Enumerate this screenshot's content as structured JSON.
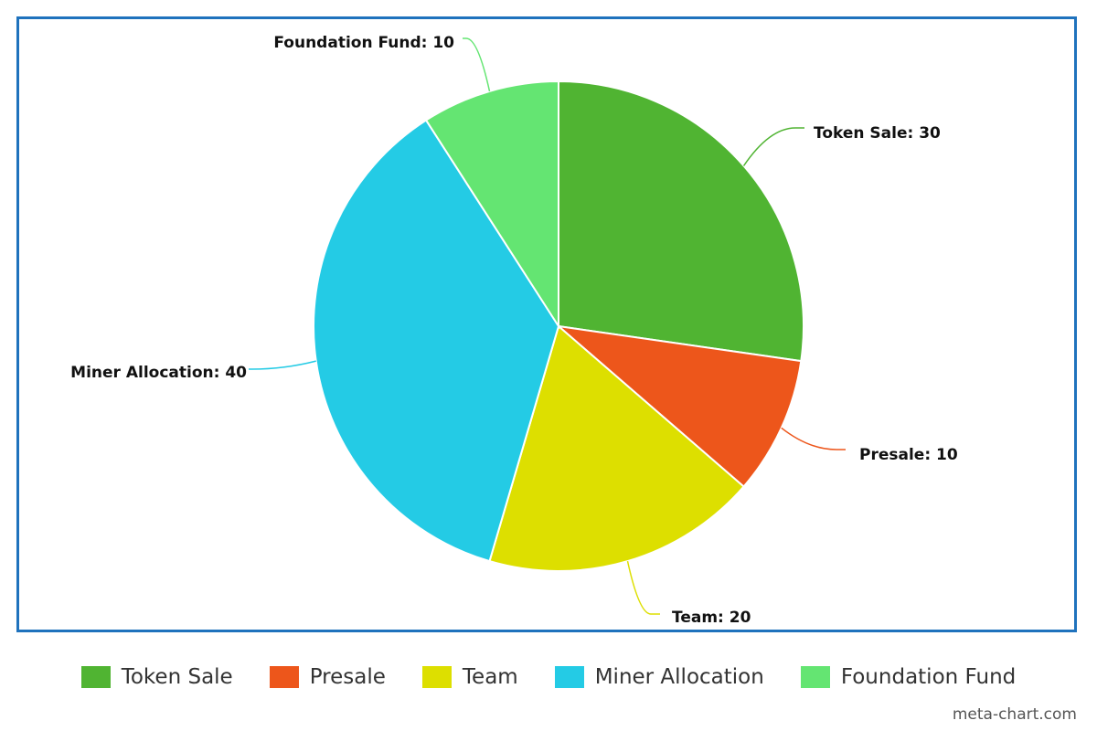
{
  "chart_data": {
    "type": "pie",
    "title": "",
    "label_separator": ": ",
    "slices": [
      {
        "label": "Token Sale",
        "value": 30,
        "color": "#50b432"
      },
      {
        "label": "Presale",
        "value": 10,
        "color": "#ed561b"
      },
      {
        "label": "Team",
        "value": 20,
        "color": "#dddf00"
      },
      {
        "label": "Miner Allocation",
        "value": 40,
        "color": "#24cbe5"
      },
      {
        "label": "Foundation Fund",
        "value": 10,
        "color": "#64e572"
      }
    ],
    "legend_position": "bottom",
    "start_angle": "top, clockwise"
  },
  "watermark": "meta-chart.com"
}
